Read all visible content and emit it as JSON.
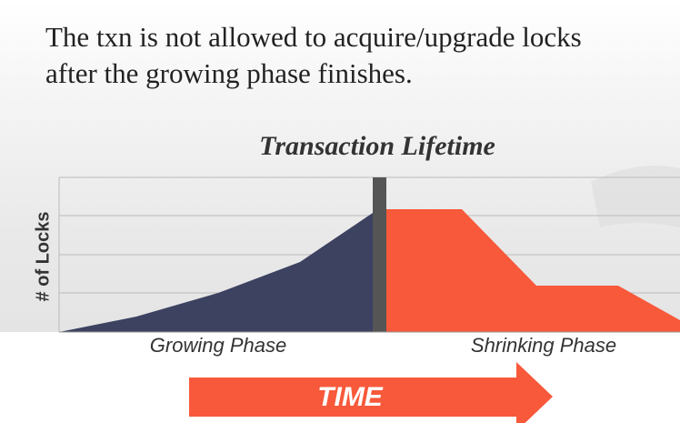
{
  "body": {
    "lines": [
      "The txn is not allowed to acquire/upgrade locks",
      "after the growing phase finishes."
    ]
  },
  "diagram": {
    "title": "Transaction Lifetime",
    "y_label": "# of Locks",
    "phases": [
      "Growing Phase",
      "Shrinking Phase"
    ],
    "arrow_label": "TIME"
  }
}
